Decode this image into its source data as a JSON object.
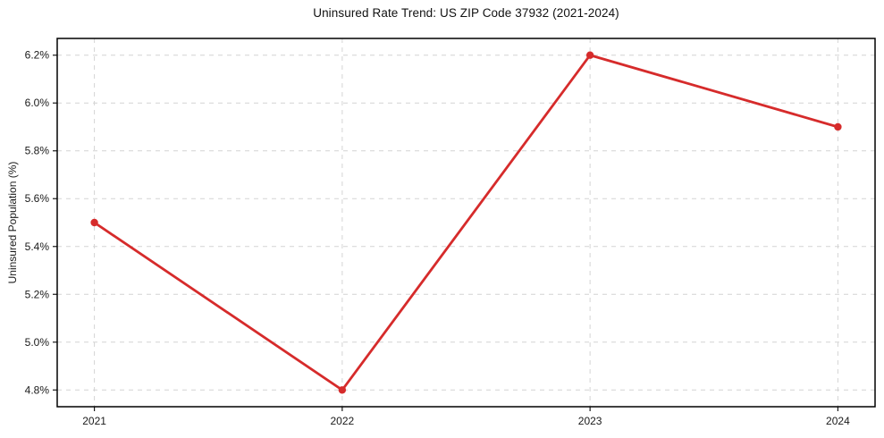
{
  "chart_data": {
    "type": "line",
    "title": "Uninsured Rate Trend: US ZIP Code 37932 (2021-2024)",
    "xlabel": "",
    "ylabel": "Uninsured Population (%)",
    "x": [
      2021,
      2022,
      2023,
      2024
    ],
    "values": [
      5.5,
      4.8,
      6.2,
      5.9
    ],
    "xtick_values": [
      2021,
      2022,
      2023,
      2024
    ],
    "xtick_labels": [
      "2021",
      "2022",
      "2023",
      "2024"
    ],
    "ytick_values": [
      4.8,
      5.0,
      5.2,
      5.4,
      5.6,
      5.8,
      6.0,
      6.2
    ],
    "ytick_labels": [
      "4.8%",
      "5.0%",
      "5.2%",
      "5.4%",
      "5.6%",
      "5.8%",
      "6.0%",
      "6.2%"
    ],
    "xlim": [
      2020.85,
      2024.15
    ],
    "ylim": [
      4.73,
      6.27
    ],
    "grid": true,
    "grid_style": "dashed",
    "legend": false,
    "line_color": "#d62b2b",
    "marker": "circle",
    "marker_radius": 4.2
  }
}
